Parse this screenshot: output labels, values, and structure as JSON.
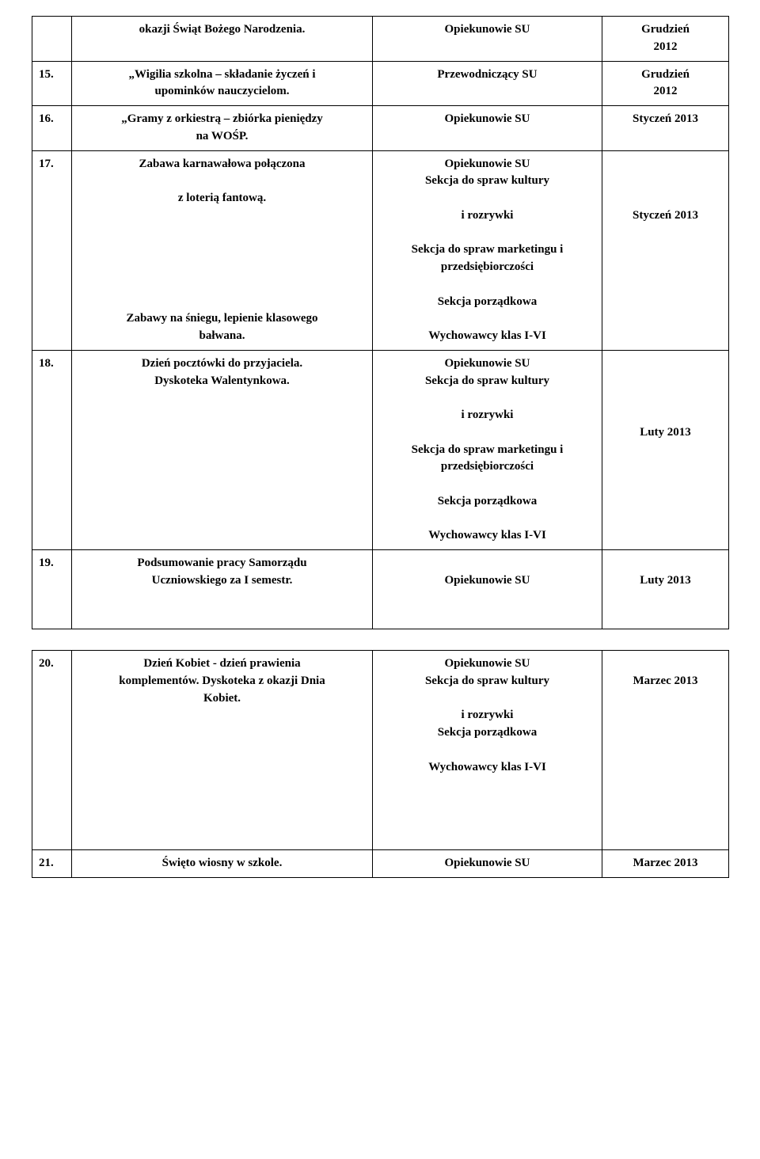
{
  "rows": [
    {
      "num": "",
      "task_lines": [
        "okazji Świąt Bożego Narodzenia."
      ],
      "resp_lines_bold": [
        "Opiekunowie SU"
      ],
      "resp_lines_plain": [],
      "date_lines": [
        "Grudzień",
        "2012"
      ]
    },
    {
      "num": "15.",
      "task_lines": [
        "„Wigilia szkolna – składanie życzeń i",
        "upominków nauczycielom."
      ],
      "resp_lines_bold": [
        "Przewodniczący SU"
      ],
      "resp_lines_plain": [],
      "date_lines": [
        "Grudzień",
        "2012"
      ]
    },
    {
      "num": "16.",
      "task_lines": [
        "„Gramy z orkiestrą – zbiórka pieniędzy",
        "na WOŚP."
      ],
      "resp_lines_bold": [
        "Opiekunowie SU"
      ],
      "resp_lines_plain": [],
      "date_lines": [
        "Styczeń 2013"
      ]
    },
    {
      "num": "17.",
      "task_blocks": [
        [
          "Zabawa karnawałowa połączona",
          "",
          "z loterią fantową."
        ],
        [
          "Zabawy na śniegu, lepienie klasowego",
          "bałwana."
        ]
      ],
      "resp_bold_top": "Opiekunowie SU",
      "resp_plain": [
        "Sekcja do spraw kultury",
        "",
        "i rozrywki",
        "",
        "Sekcja do spraw marketingu i",
        "przedsiębiorczości",
        "",
        "Sekcja porządkowa",
        "",
        "Wychowawcy klas I-VI"
      ],
      "date_lines": [
        "",
        "",
        "",
        "Styczeń 2013"
      ]
    },
    {
      "num": "18.",
      "task_blocks": [
        [
          "Dzień pocztówki do przyjaciela.",
          "Dyskoteka Walentynkowa."
        ]
      ],
      "resp_bold_top": "Opiekunowie SU",
      "resp_plain": [
        "Sekcja do spraw kultury",
        "",
        "i rozrywki",
        "",
        "Sekcja do spraw marketingu i",
        "przedsiębiorczości",
        "",
        "Sekcja porządkowa",
        "",
        "Wychowawcy klas I-VI"
      ],
      "date_lines": [
        "",
        "",
        "",
        "",
        "Luty 2013"
      ]
    },
    {
      "num": "19.",
      "task_lines": [
        "Podsumowanie pracy Samorządu",
        "Uczniowskiego za I semestr."
      ],
      "resp_lines_bold": [
        "",
        "Opiekunowie SU"
      ],
      "resp_lines_plain": [],
      "date_lines": [
        "",
        "Luty 2013",
        "",
        ""
      ]
    },
    {
      "num": "20.",
      "task_blocks": [
        [
          "Dzień Kobiet  - dzień prawienia",
          "komplementów. Dyskoteka z okazji Dnia",
          "Kobiet."
        ]
      ],
      "resp_bold_top": "Opiekunowie SU",
      "resp_plain": [
        "Sekcja do spraw kultury",
        "",
        "i rozrywki",
        "Sekcja porządkowa",
        "",
        "Wychowawcy klas I-VI",
        "",
        "",
        "",
        ""
      ],
      "date_lines": [
        "",
        "Marzec 2013"
      ]
    },
    {
      "num": "21.",
      "task_lines": [
        "Święto wiosny w szkole."
      ],
      "resp_lines_bold": [
        "Opiekunowie SU"
      ],
      "resp_lines_plain": [],
      "date_lines": [
        "Marzec 2013"
      ]
    }
  ]
}
